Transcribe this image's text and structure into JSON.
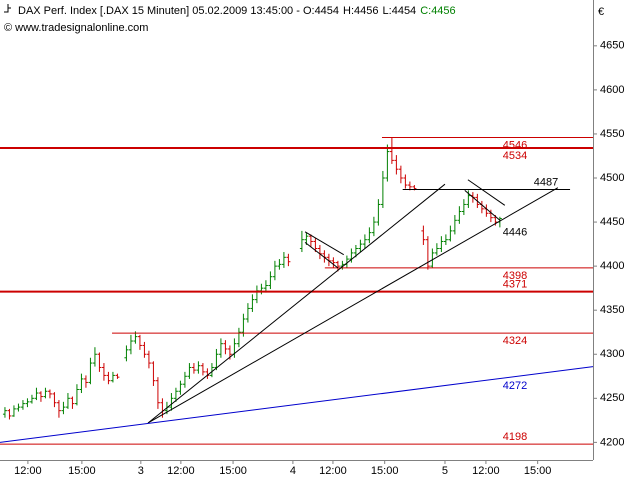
{
  "chart_data": {
    "type": "ohlc",
    "title": "DAX Perf. Index [.DAX  15 Minuten] 05.02.2009 13:45:00 - ",
    "quote": [
      "O:4454",
      "H:4456",
      "L:4454",
      "C:4456"
    ],
    "source": "© www.tradesignalonline.com",
    "currency": "€",
    "up_color": "#008000",
    "down_color": "#cc0000",
    "x": [
      0,
      1,
      2,
      3,
      4,
      5,
      6,
      7,
      8,
      9,
      10,
      11,
      12,
      13,
      14,
      15,
      16,
      17,
      18,
      19,
      20,
      21,
      22,
      23,
      24,
      25,
      27,
      28,
      29,
      30,
      31,
      32,
      33,
      34,
      35,
      36,
      37,
      38,
      39,
      40,
      41,
      42,
      43,
      44,
      45,
      46,
      47,
      48,
      49,
      50,
      51,
      52,
      53,
      54,
      55,
      56,
      57,
      58,
      59,
      60,
      61,
      62,
      63,
      66,
      67,
      68,
      69,
      70,
      71,
      72,
      73,
      74,
      75,
      76,
      77,
      78,
      79,
      80,
      81,
      82,
      83,
      84,
      85,
      86,
      87,
      88,
      89,
      90,
      91,
      93,
      94,
      95,
      96,
      97,
      98,
      99,
      100,
      101,
      102,
      103,
      104,
      105,
      106,
      107,
      108,
      109,
      110
    ],
    "ohlc": [
      [
        4232,
        4240,
        4228,
        4236
      ],
      [
        4236,
        4238,
        4226,
        4230
      ],
      [
        4230,
        4242,
        4229,
        4238
      ],
      [
        4238,
        4244,
        4235,
        4240
      ],
      [
        4240,
        4248,
        4237,
        4244
      ],
      [
        4244,
        4250,
        4240,
        4246
      ],
      [
        4246,
        4254,
        4244,
        4250
      ],
      [
        4250,
        4262,
        4248,
        4256
      ],
      [
        4256,
        4258,
        4246,
        4252
      ],
      [
        4252,
        4262,
        4250,
        4258
      ],
      [
        4258,
        4260,
        4250,
        4255
      ],
      [
        4255,
        4257,
        4240,
        4245
      ],
      [
        4245,
        4248,
        4228,
        4236
      ],
      [
        4236,
        4246,
        4232,
        4240
      ],
      [
        4240,
        4256,
        4238,
        4250
      ],
      [
        4250,
        4252,
        4238,
        4244
      ],
      [
        4244,
        4266,
        4242,
        4260
      ],
      [
        4260,
        4278,
        4256,
        4272
      ],
      [
        4272,
        4276,
        4262,
        4268
      ],
      [
        4268,
        4296,
        4266,
        4290
      ],
      [
        4290,
        4308,
        4286,
        4300
      ],
      [
        4300,
        4302,
        4280,
        4285
      ],
      [
        4285,
        4290,
        4270,
        4276
      ],
      [
        4276,
        4280,
        4266,
        4270
      ],
      [
        4270,
        4280,
        4268,
        4276
      ],
      [
        4276,
        4278,
        4272,
        4274
      ],
      [
        4296,
        4310,
        4292,
        4305
      ],
      [
        4305,
        4322,
        4300,
        4315
      ],
      [
        4315,
        4326,
        4312,
        4320
      ],
      [
        4320,
        4322,
        4305,
        4310
      ],
      [
        4310,
        4314,
        4296,
        4300
      ],
      [
        4300,
        4304,
        4284,
        4290
      ],
      [
        4290,
        4292,
        4264,
        4270
      ],
      [
        4270,
        4274,
        4238,
        4245
      ],
      [
        4245,
        4250,
        4228,
        4236
      ],
      [
        4236,
        4246,
        4232,
        4240
      ],
      [
        4240,
        4256,
        4236,
        4250
      ],
      [
        4250,
        4262,
        4246,
        4258
      ],
      [
        4258,
        4270,
        4254,
        4266
      ],
      [
        4266,
        4280,
        4262,
        4275
      ],
      [
        4275,
        4290,
        4272,
        4285
      ],
      [
        4285,
        4290,
        4278,
        4282
      ],
      [
        4282,
        4292,
        4278,
        4287
      ],
      [
        4287,
        4290,
        4276,
        4280
      ],
      [
        4280,
        4284,
        4272,
        4276
      ],
      [
        4276,
        4290,
        4274,
        4285
      ],
      [
        4285,
        4306,
        4282,
        4300
      ],
      [
        4300,
        4318,
        4296,
        4312
      ],
      [
        4312,
        4316,
        4300,
        4306
      ],
      [
        4306,
        4310,
        4294,
        4300
      ],
      [
        4300,
        4318,
        4296,
        4312
      ],
      [
        4312,
        4330,
        4308,
        4325
      ],
      [
        4325,
        4346,
        4320,
        4340
      ],
      [
        4340,
        4358,
        4336,
        4352
      ],
      [
        4352,
        4368,
        4348,
        4362
      ],
      [
        4362,
        4378,
        4358,
        4372
      ],
      [
        4372,
        4380,
        4368,
        4375
      ],
      [
        4375,
        4384,
        4370,
        4378
      ],
      [
        4378,
        4394,
        4374,
        4388
      ],
      [
        4388,
        4406,
        4384,
        4400
      ],
      [
        4400,
        4408,
        4396,
        4402
      ],
      [
        4402,
        4416,
        4398,
        4410
      ],
      [
        4410,
        4414,
        4400,
        4405
      ],
      [
        4420,
        4440,
        4416,
        4430
      ],
      [
        4430,
        4438,
        4424,
        4434
      ],
      [
        4434,
        4436,
        4422,
        4428
      ],
      [
        4428,
        4432,
        4416,
        4420
      ],
      [
        4420,
        4424,
        4408,
        4414
      ],
      [
        4414,
        4418,
        4404,
        4410
      ],
      [
        4410,
        4414,
        4400,
        4406
      ],
      [
        4406,
        4410,
        4398,
        4404
      ],
      [
        4404,
        4406,
        4394,
        4400
      ],
      [
        4400,
        4406,
        4396,
        4402
      ],
      [
        4402,
        4412,
        4398,
        4408
      ],
      [
        4408,
        4420,
        4404,
        4415
      ],
      [
        4415,
        4424,
        4410,
        4420
      ],
      [
        4420,
        4430,
        4416,
        4425
      ],
      [
        4425,
        4436,
        4420,
        4430
      ],
      [
        4430,
        4444,
        4426,
        4438
      ],
      [
        4438,
        4456,
        4434,
        4450
      ],
      [
        4450,
        4476,
        4446,
        4470
      ],
      [
        4470,
        4508,
        4466,
        4500
      ],
      [
        4500,
        4538,
        4496,
        4530
      ],
      [
        4530,
        4546,
        4516,
        4520
      ],
      [
        4520,
        4526,
        4504,
        4510
      ],
      [
        4510,
        4514,
        4494,
        4500
      ],
      [
        4500,
        4504,
        4488,
        4492
      ],
      [
        4492,
        4496,
        4486,
        4490
      ],
      [
        4490,
        4492,
        4486,
        4488
      ],
      [
        4440,
        4446,
        4424,
        4430
      ],
      [
        4430,
        4434,
        4396,
        4400
      ],
      [
        4400,
        4420,
        4398,
        4415
      ],
      [
        4415,
        4426,
        4412,
        4420
      ],
      [
        4420,
        4434,
        4416,
        4428
      ],
      [
        4428,
        4436,
        4424,
        4430
      ],
      [
        4430,
        4446,
        4428,
        4440
      ],
      [
        4440,
        4458,
        4436,
        4452
      ],
      [
        4452,
        4468,
        4448,
        4462
      ],
      [
        4462,
        4476,
        4458,
        4470
      ],
      [
        4470,
        4486,
        4466,
        4480
      ],
      [
        4480,
        4484,
        4472,
        4478
      ],
      [
        4478,
        4482,
        4466,
        4470
      ],
      [
        4470,
        4474,
        4460,
        4465
      ],
      [
        4465,
        4470,
        4456,
        4460
      ],
      [
        4460,
        4464,
        4450,
        4455
      ],
      [
        4455,
        4458,
        4446,
        4450
      ],
      [
        4450,
        4456,
        4444,
        4454
      ]
    ],
    "xlim": [
      -1.1,
      130.7
    ],
    "ylim": [
      4180,
      4702
    ],
    "yticks": [
      4200,
      4250,
      4300,
      4350,
      4400,
      4450,
      4500,
      4550,
      4600,
      4650
    ],
    "xticks": [
      {
        "value": 5.1,
        "label": "12:00"
      },
      {
        "value": 17.1,
        "label": "15:00"
      },
      {
        "value": 30.2,
        "label": "3"
      },
      {
        "value": 39.1,
        "label": "12:00"
      },
      {
        "value": 50.7,
        "label": "15:00"
      },
      {
        "value": 64,
        "label": "4"
      },
      {
        "value": 72.9,
        "label": "12:00"
      },
      {
        "value": 84.4,
        "label": "15:00"
      },
      {
        "value": 97.8,
        "label": "5"
      },
      {
        "value": 106.9,
        "label": "12:00"
      },
      {
        "value": 118.4,
        "label": "15:00"
      }
    ],
    "levels": [
      {
        "value": 4546,
        "color": "#cc0000",
        "style": "thin",
        "start": 83.8,
        "label_pos": "below"
      },
      {
        "value": 4534,
        "color": "#cc0000",
        "style": "thick",
        "label_pos": "below"
      },
      {
        "value": 4487,
        "color": "#000000",
        "style": "thin",
        "start": 88.4,
        "end": 125.6,
        "label_pos": "above"
      },
      {
        "value": 4398,
        "color": "#cc0000",
        "style": "thin",
        "start": 71.1,
        "label_pos": "below"
      },
      {
        "value": 4371,
        "color": "#cc0000",
        "style": "thick",
        "label_pos": "above"
      },
      {
        "value": 4324,
        "color": "#cc0000",
        "style": "thin",
        "start": 23.8,
        "label_pos": "below"
      },
      {
        "value": 4198,
        "color": "#cc0000",
        "style": "thin",
        "label_pos": "above"
      }
    ],
    "trendlines": [
      {
        "from": [
          31.8,
          4222
        ],
        "to": [
          97.8,
          4493
        ],
        "color": "#000000"
      },
      {
        "from": [
          31.8,
          4222
        ],
        "to": [
          122.9,
          4489
        ],
        "color": "#000000",
        "label": 4446
      },
      {
        "from": [
          -1.1,
          4200
        ],
        "to": [
          130.7,
          4286
        ],
        "color": "#0000cc",
        "label": 4272
      },
      {
        "from": [
          66.7,
          4439
        ],
        "to": [
          75.3,
          4413
        ],
        "color": "#000000"
      },
      {
        "from": [
          66.7,
          4427
        ],
        "to": [
          74,
          4398
        ],
        "color": "#000000"
      },
      {
        "from": [
          102.9,
          4498
        ],
        "to": [
          111.1,
          4469
        ],
        "color": "#000000"
      },
      {
        "from": [
          102.2,
          4486
        ],
        "to": [
          110,
          4452
        ],
        "color": "#000000"
      }
    ]
  }
}
